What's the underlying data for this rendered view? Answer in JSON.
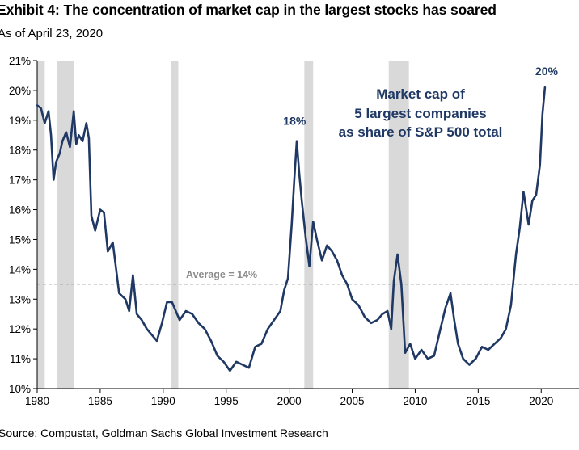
{
  "title": "Exhibit 4: The concentration of market cap in the largest stocks has soared",
  "subtitle": "As of April 23, 2020",
  "source": "Source: Compustat, Goldman Sachs Global Investment Research",
  "colors": {
    "line": "#1f3864",
    "recession": "#d9d9d9",
    "average": "#999999",
    "annotation": "#1f3864"
  },
  "chart_data": {
    "type": "line",
    "title": "Exhibit 4: The concentration of market cap in the largest stocks has soared",
    "xlabel": "",
    "ylabel": "",
    "xlim": [
      1980,
      2023
    ],
    "ylim": [
      10,
      21
    ],
    "x_ticks": [
      1980,
      1985,
      1990,
      1995,
      2000,
      2005,
      2010,
      2015,
      2020
    ],
    "x_tick_labels": [
      "1980",
      "1985",
      "1990",
      "1995",
      "2000",
      "2005",
      "2010",
      "2015",
      "2020"
    ],
    "y_ticks": [
      10,
      11,
      12,
      13,
      14,
      15,
      16,
      17,
      18,
      19,
      20,
      21
    ],
    "y_tick_labels": [
      "10%",
      "11%",
      "12%",
      "13%",
      "14%",
      "15%",
      "16%",
      "17%",
      "18%",
      "19%",
      "20%",
      "21%"
    ],
    "recessions": [
      [
        1980.0,
        1980.6
      ],
      [
        1981.6,
        1982.9
      ],
      [
        1990.6,
        1991.2
      ],
      [
        2001.2,
        2001.9
      ],
      [
        2007.9,
        2009.5
      ]
    ],
    "average": {
      "value": 13.5,
      "label": "Average = 14%"
    },
    "series": [
      {
        "name": "Market cap of 5 largest companies as share of S&P 500 total",
        "x": [
          1980.0,
          1980.3,
          1980.6,
          1980.9,
          1981.1,
          1981.3,
          1981.5,
          1981.8,
          1982.0,
          1982.3,
          1982.6,
          1982.9,
          1983.1,
          1983.3,
          1983.6,
          1983.9,
          1984.1,
          1984.3,
          1984.6,
          1985.0,
          1985.3,
          1985.6,
          1986.0,
          1986.5,
          1987.0,
          1987.3,
          1987.6,
          1987.9,
          1988.3,
          1988.7,
          1989.1,
          1989.5,
          1989.9,
          1990.3,
          1990.7,
          1991.0,
          1991.3,
          1991.8,
          1992.3,
          1992.8,
          1993.3,
          1993.8,
          1994.3,
          1994.8,
          1995.3,
          1995.8,
          1996.3,
          1996.8,
          1997.3,
          1997.8,
          1998.3,
          1998.8,
          1999.3,
          1999.6,
          1999.9,
          2000.2,
          2000.4,
          2000.6,
          2000.8,
          2001.0,
          2001.3,
          2001.6,
          2001.9,
          2002.2,
          2002.6,
          2003.0,
          2003.4,
          2003.8,
          2004.2,
          2004.6,
          2005.0,
          2005.5,
          2006.0,
          2006.5,
          2007.0,
          2007.4,
          2007.8,
          2008.1,
          2008.3,
          2008.6,
          2008.9,
          2009.2,
          2009.6,
          2010.0,
          2010.5,
          2011.0,
          2011.5,
          2012.0,
          2012.4,
          2012.8,
          2013.1,
          2013.4,
          2013.8,
          2014.3,
          2014.8,
          2015.3,
          2015.8,
          2016.3,
          2016.8,
          2017.2,
          2017.6,
          2018.0,
          2018.3,
          2018.6,
          2019.0,
          2019.3,
          2019.6,
          2019.9,
          2020.1,
          2020.3
        ],
        "values": [
          19.5,
          19.4,
          18.9,
          19.3,
          18.5,
          17.0,
          17.6,
          17.9,
          18.3,
          18.6,
          18.1,
          19.3,
          18.2,
          18.5,
          18.3,
          18.9,
          18.4,
          15.8,
          15.3,
          16.0,
          15.9,
          14.6,
          14.9,
          13.2,
          13.0,
          12.6,
          13.8,
          12.5,
          12.3,
          12.0,
          11.8,
          11.6,
          12.2,
          12.9,
          12.9,
          12.6,
          12.3,
          12.6,
          12.5,
          12.2,
          12.0,
          11.6,
          11.1,
          10.9,
          10.6,
          10.9,
          10.8,
          10.7,
          11.4,
          11.5,
          12.0,
          12.3,
          12.6,
          13.3,
          13.7,
          15.5,
          17.0,
          18.3,
          17.2,
          16.3,
          15.1,
          14.1,
          15.6,
          15.0,
          14.3,
          14.8,
          14.6,
          14.3,
          13.8,
          13.5,
          13.0,
          12.8,
          12.4,
          12.2,
          12.3,
          12.5,
          12.6,
          12.0,
          13.6,
          14.5,
          13.5,
          11.2,
          11.5,
          11.0,
          11.3,
          11.0,
          11.1,
          12.0,
          12.7,
          13.2,
          12.3,
          11.5,
          11.0,
          10.8,
          11.0,
          11.4,
          11.3,
          11.5,
          11.7,
          12.0,
          12.8,
          14.5,
          15.4,
          16.6,
          15.5,
          16.3,
          16.5,
          17.5,
          19.2,
          20.1
        ]
      }
    ],
    "annotations": [
      {
        "text": "18%",
        "x": 2000.3,
        "y": 18.3
      },
      {
        "text": "20%",
        "x": 2020.3,
        "y": 20.1
      },
      {
        "lines": [
          "Market cap of",
          "5 largest companies",
          "as share of S&P 500 total"
        ]
      }
    ]
  }
}
